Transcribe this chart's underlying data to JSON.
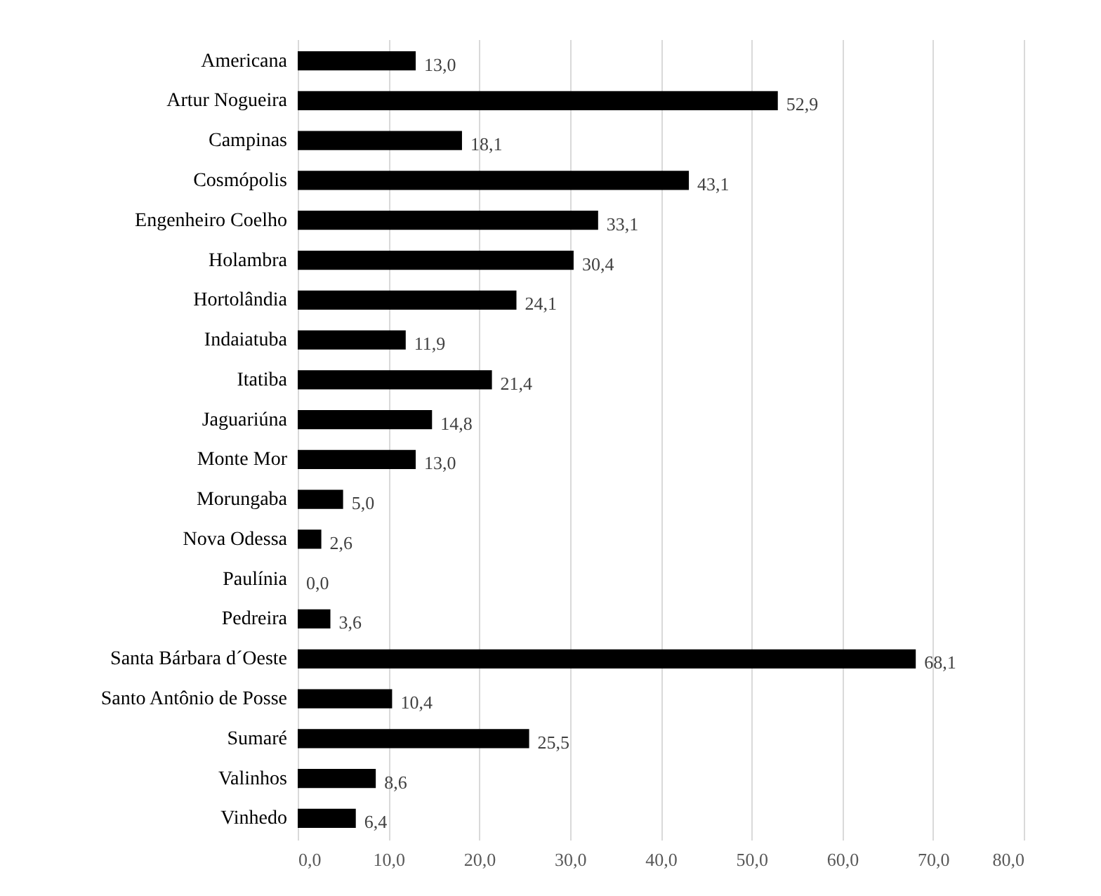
{
  "chart_data": {
    "type": "bar",
    "orientation": "horizontal",
    "categories": [
      "Americana",
      "Artur Nogueira",
      "Campinas",
      "Cosmópolis",
      "Engenheiro Coelho",
      "Holambra",
      "Hortolândia",
      "Indaiatuba",
      "Itatiba",
      "Jaguariúna",
      "Monte Mor",
      "Morungaba",
      "Nova Odessa",
      "Paulínia",
      "Pedreira",
      "Santa Bárbara d´Oeste",
      "Santo Antônio de Posse",
      "Sumaré",
      "Valinhos",
      "Vinhedo"
    ],
    "values": [
      13.0,
      52.9,
      18.1,
      43.1,
      33.1,
      30.4,
      24.1,
      11.9,
      21.4,
      14.8,
      13.0,
      5.0,
      2.6,
      0.0,
      3.6,
      68.1,
      10.4,
      25.5,
      8.6,
      6.4
    ],
    "value_labels": [
      "13,0",
      "52,9",
      "18,1",
      "43,1",
      "33,1",
      "30,4",
      "24,1",
      "11,9",
      "21,4",
      "14,8",
      "13,0",
      "5,0",
      "2,6",
      "0,0",
      "3,6",
      "68,1",
      "10,4",
      "25,5",
      "8,6",
      "6,4"
    ],
    "color": "#000000",
    "xlim": [
      0,
      80
    ],
    "xticks": [
      {
        "value": 0,
        "label": "0,0"
      },
      {
        "value": 10,
        "label": "10,0"
      },
      {
        "value": 20,
        "label": "20,0"
      },
      {
        "value": 30,
        "label": "30,0"
      },
      {
        "value": 40,
        "label": "40,0"
      },
      {
        "value": 50,
        "label": "50,0"
      },
      {
        "value": 60,
        "label": "60,0"
      },
      {
        "value": 70,
        "label": "70,0"
      },
      {
        "value": 80,
        "label": "80,0"
      }
    ],
    "grid": "x"
  }
}
